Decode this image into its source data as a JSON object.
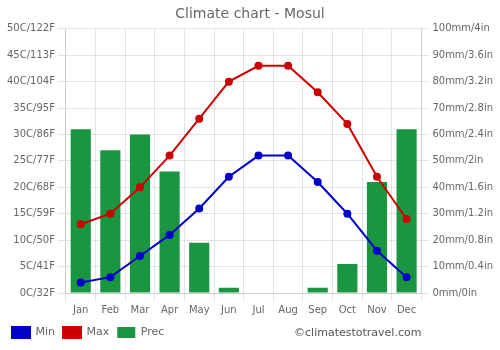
{
  "chart_data": {
    "type": "bar",
    "title": "Climate chart - Mosul",
    "categories": [
      "Jan",
      "Feb",
      "Mar",
      "Apr",
      "May",
      "Jun",
      "Jul",
      "Aug",
      "Sep",
      "Oct",
      "Nov",
      "Dec"
    ],
    "series": [
      {
        "name": "Prec",
        "type": "bar",
        "color": "#1a9641",
        "axis": "y2",
        "values": [
          62,
          54,
          60,
          46,
          19,
          2,
          0,
          0,
          2,
          11,
          42,
          62
        ]
      },
      {
        "name": "Min",
        "type": "line",
        "color": "#0000cc",
        "marker": "circle",
        "values": [
          2,
          3,
          7,
          11,
          16,
          22,
          26,
          26,
          21,
          15,
          8,
          3
        ]
      },
      {
        "name": "Max",
        "type": "line",
        "color": "#cc0000",
        "marker": "circle",
        "values": [
          13,
          15,
          20,
          26,
          33,
          40,
          43,
          43,
          38,
          32,
          22,
          14
        ]
      }
    ],
    "ylim": [
      0,
      50
    ],
    "yticks": [
      {
        "value": 0,
        "label": "0C/32F"
      },
      {
        "value": 5,
        "label": "5C/41F"
      },
      {
        "value": 10,
        "label": "10C/50F"
      },
      {
        "value": 15,
        "label": "15C/59F"
      },
      {
        "value": 20,
        "label": "20C/68F"
      },
      {
        "value": 25,
        "label": "25C/77F"
      },
      {
        "value": 30,
        "label": "30C/86F"
      },
      {
        "value": 35,
        "label": "35C/95F"
      },
      {
        "value": 40,
        "label": "40C/104F"
      },
      {
        "value": 45,
        "label": "45C/113F"
      },
      {
        "value": 50,
        "label": "50C/122F"
      }
    ],
    "y2lim": [
      0,
      100
    ],
    "y2ticks": [
      {
        "value": 0,
        "label": "0mm/0in"
      },
      {
        "value": 10,
        "label": "10mm/0.4in"
      },
      {
        "value": 20,
        "label": "20mm/0.8in"
      },
      {
        "value": 30,
        "label": "30mm/1.2in"
      },
      {
        "value": 40,
        "label": "40mm/1.6in"
      },
      {
        "value": 50,
        "label": "50mm/2in"
      },
      {
        "value": 60,
        "label": "60mm/2.4in"
      },
      {
        "value": 70,
        "label": "70mm/2.8in"
      },
      {
        "value": 80,
        "label": "80mm/3.2in"
      },
      {
        "value": 90,
        "label": "90mm/3.6in"
      },
      {
        "value": 100,
        "label": "100mm/4in"
      }
    ],
    "grid": true,
    "legend": "lower left",
    "annotations": [
      "©climatestotravel.com"
    ]
  }
}
